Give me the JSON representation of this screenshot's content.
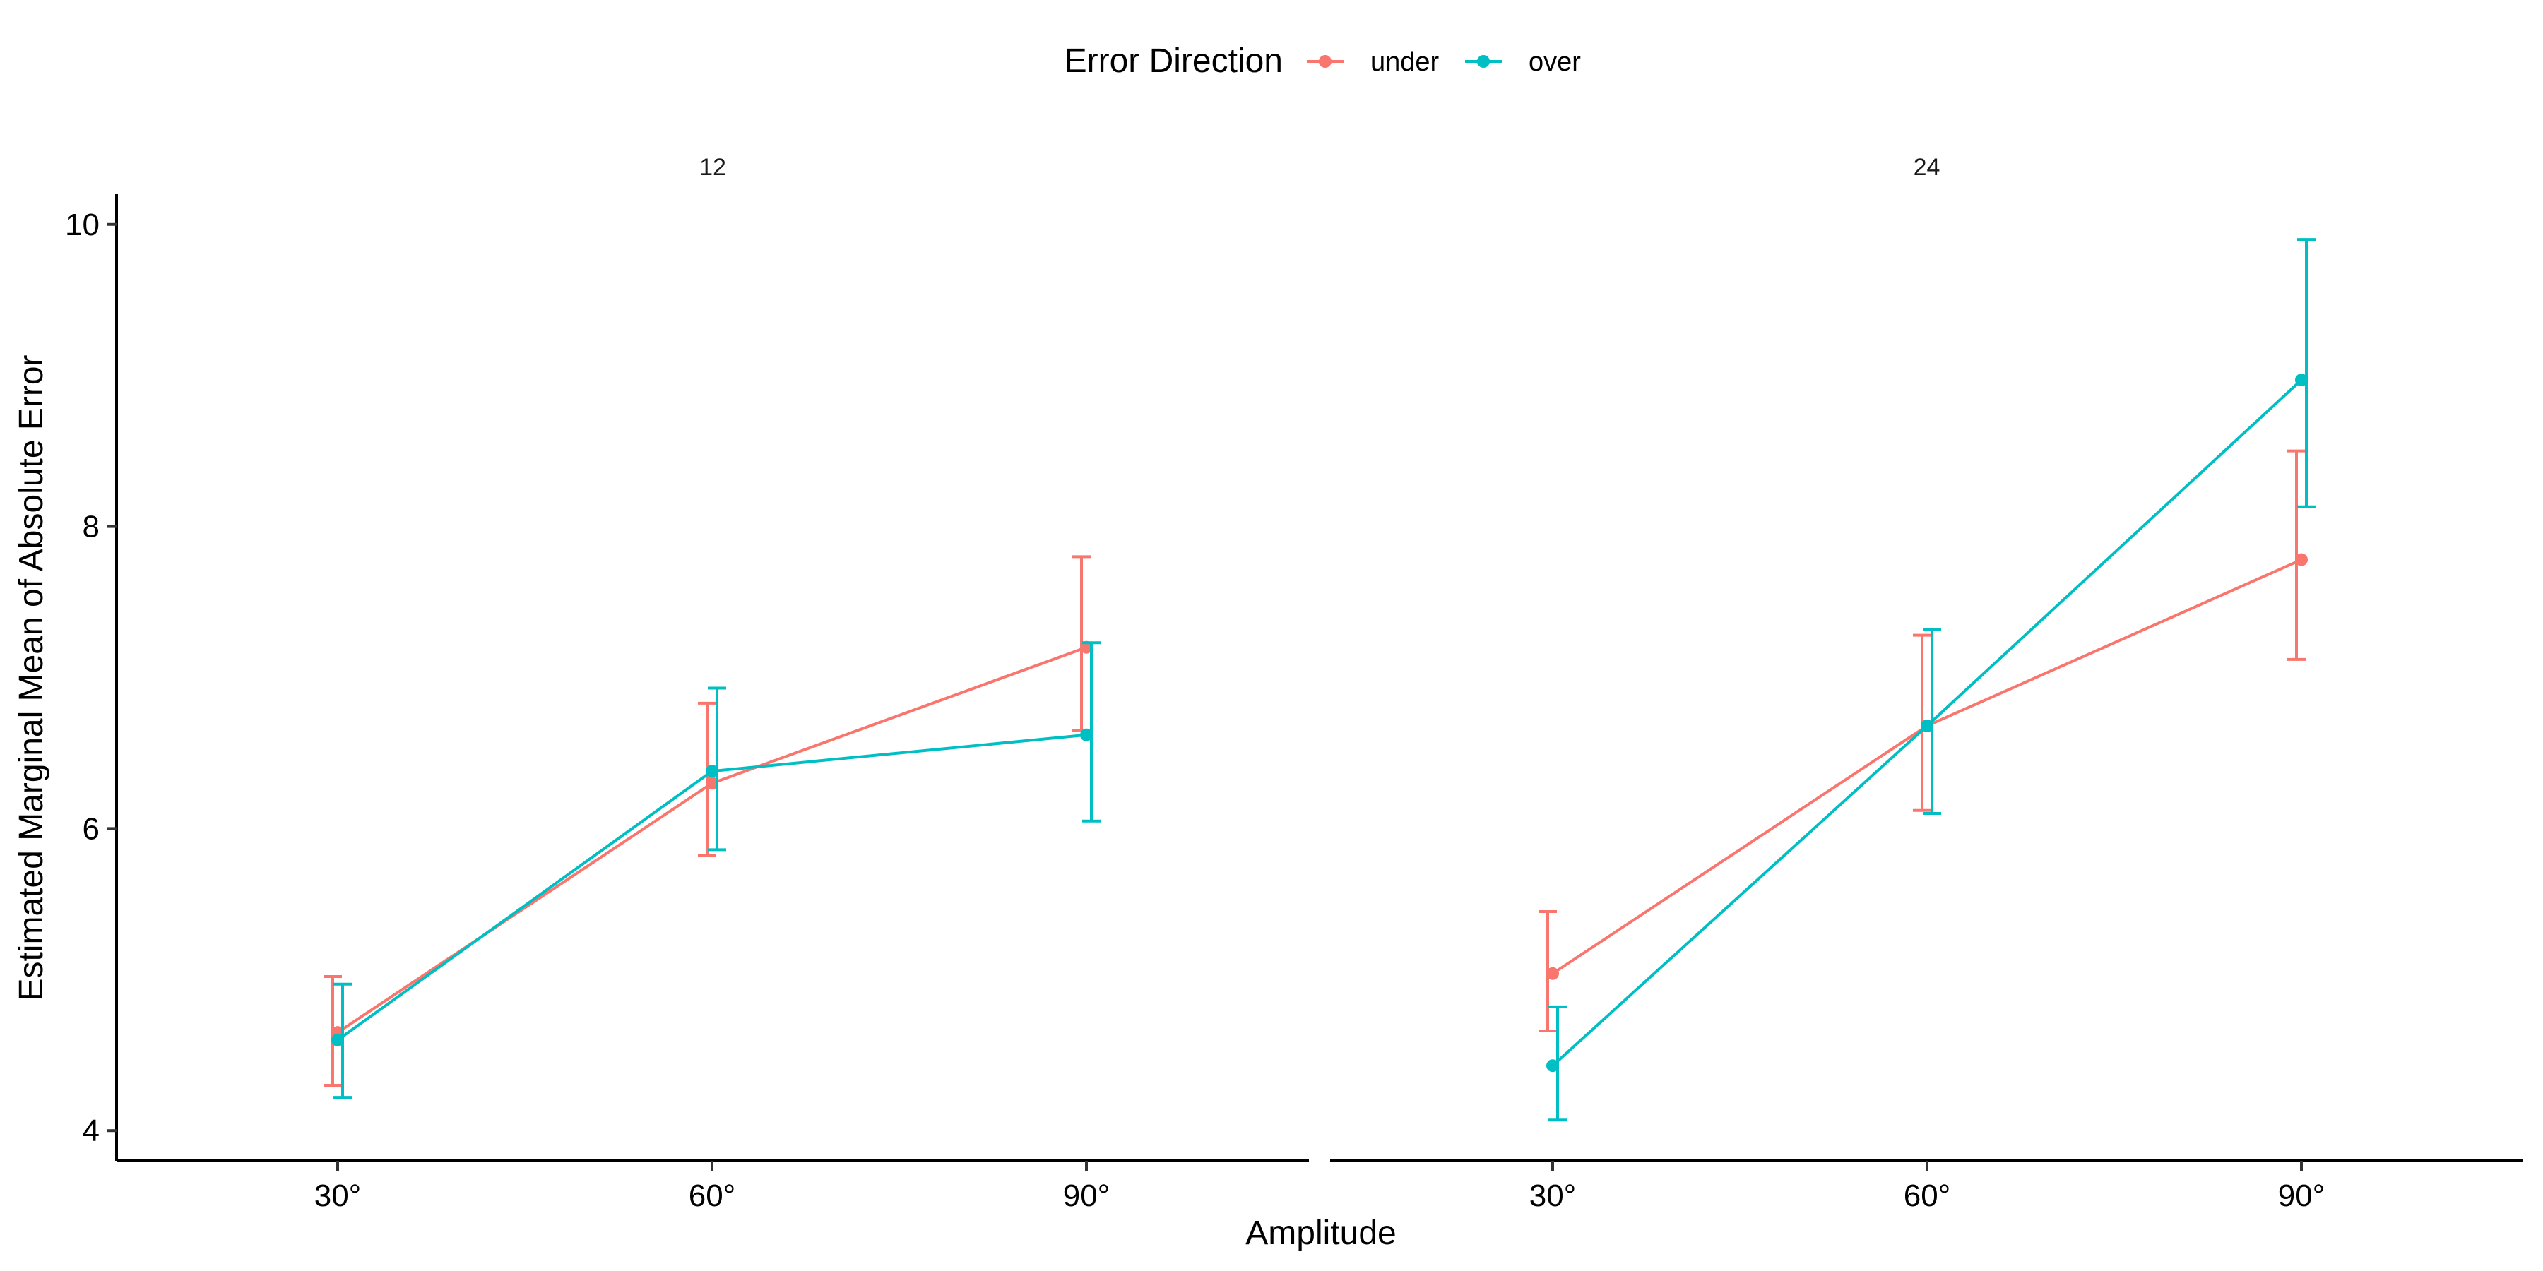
{
  "chart_data": {
    "type": "line",
    "xlabel": "Amplitude",
    "ylabel": "Estimated Marginal Mean of Absolute Error",
    "categories": [
      "30°",
      "60°",
      "90°"
    ],
    "ylim": [
      3.8,
      10.2
    ],
    "yticks": [
      4,
      6,
      8,
      10
    ],
    "grid": false,
    "legend": {
      "title": "Error Direction",
      "position": "top",
      "entries": [
        "under",
        "over"
      ]
    },
    "colors": {
      "under": "#F8766D",
      "over": "#00BFC4"
    },
    "panels": [
      {
        "label": "12",
        "series": [
          {
            "name": "under",
            "values": [
              4.65,
              6.3,
              7.2
            ],
            "lower": [
              4.3,
              5.82,
              6.65
            ],
            "upper": [
              5.02,
              6.83,
              7.8
            ]
          },
          {
            "name": "over",
            "values": [
              4.6,
              6.38,
              6.62
            ],
            "lower": [
              4.22,
              5.86,
              6.05
            ],
            "upper": [
              4.97,
              6.93,
              7.23
            ]
          }
        ]
      },
      {
        "label": "24",
        "series": [
          {
            "name": "under",
            "values": [
              5.04,
              6.68,
              7.78
            ],
            "lower": [
              4.66,
              6.12,
              7.12
            ],
            "upper": [
              5.45,
              7.28,
              8.5
            ]
          },
          {
            "name": "over",
            "values": [
              4.43,
              6.68,
              8.97
            ],
            "lower": [
              4.07,
              6.1,
              8.13
            ],
            "upper": [
              4.82,
              7.32,
              9.9
            ]
          }
        ]
      }
    ]
  }
}
